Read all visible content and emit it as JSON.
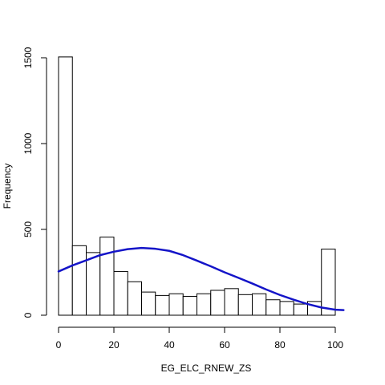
{
  "chart_data": {
    "type": "bar",
    "title": "",
    "xlabel": "EG_ELC_RNEW_ZS",
    "ylabel": "Frequency",
    "xlim": [
      -1,
      104
    ],
    "ylim": [
      0,
      1500
    ],
    "xticks": [
      0,
      20,
      40,
      60,
      80,
      100
    ],
    "yticks": [
      0,
      500,
      1000,
      1500
    ],
    "bin_width": 5,
    "bins": [
      {
        "x0": 0,
        "x1": 5,
        "count": 1505
      },
      {
        "x0": 5,
        "x1": 10,
        "count": 405
      },
      {
        "x0": 10,
        "x1": 15,
        "count": 365
      },
      {
        "x0": 15,
        "x1": 20,
        "count": 455
      },
      {
        "x0": 20,
        "x1": 25,
        "count": 255
      },
      {
        "x0": 25,
        "x1": 30,
        "count": 195
      },
      {
        "x0": 30,
        "x1": 35,
        "count": 135
      },
      {
        "x0": 35,
        "x1": 40,
        "count": 115
      },
      {
        "x0": 40,
        "x1": 45,
        "count": 125
      },
      {
        "x0": 45,
        "x1": 50,
        "count": 110
      },
      {
        "x0": 50,
        "x1": 55,
        "count": 125
      },
      {
        "x0": 55,
        "x1": 60,
        "count": 145
      },
      {
        "x0": 60,
        "x1": 65,
        "count": 155
      },
      {
        "x0": 65,
        "x1": 70,
        "count": 120
      },
      {
        "x0": 70,
        "x1": 75,
        "count": 125
      },
      {
        "x0": 75,
        "x1": 80,
        "count": 90
      },
      {
        "x0": 80,
        "x1": 85,
        "count": 80
      },
      {
        "x0": 85,
        "x1": 90,
        "count": 65
      },
      {
        "x0": 90,
        "x1": 95,
        "count": 80
      },
      {
        "x0": 95,
        "x1": 100,
        "count": 385
      }
    ],
    "density_curve": {
      "color": "#1414c8",
      "x": [
        0,
        5,
        10,
        15,
        20,
        25,
        30,
        35,
        40,
        45,
        50,
        55,
        60,
        65,
        70,
        75,
        80,
        85,
        90,
        95,
        100,
        103
      ],
      "y": [
        255,
        290,
        320,
        350,
        370,
        385,
        392,
        387,
        375,
        350,
        318,
        285,
        250,
        218,
        185,
        150,
        118,
        90,
        65,
        45,
        32,
        30
      ]
    }
  }
}
